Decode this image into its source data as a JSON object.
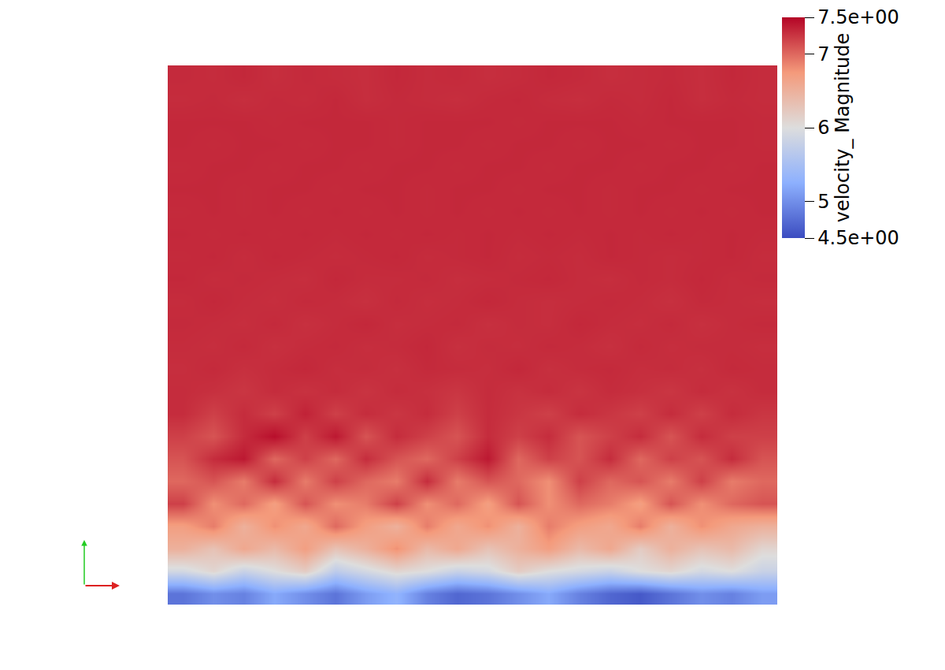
{
  "chart_data": {
    "type": "heatmap",
    "tick_labels": false,
    "grid": false,
    "z": [
      [
        4.8,
        5.0,
        4.9,
        5.2,
        5.0,
        4.8,
        5.1,
        5.3,
        4.9,
        4.7,
        4.8,
        5.0,
        5.2,
        4.9,
        4.7,
        4.6,
        4.8,
        5.0,
        4.9,
        5.1
      ],
      [
        5.9,
        6.1,
        5.8,
        6.0,
        6.2,
        5.7,
        5.9,
        6.1,
        6.0,
        5.8,
        5.9,
        6.2,
        6.0,
        5.9,
        5.8,
        6.0,
        6.1,
        5.9,
        6.0,
        5.8
      ],
      [
        6.5,
        6.3,
        6.6,
        6.4,
        6.7,
        6.3,
        6.5,
        6.8,
        6.4,
        6.6,
        6.3,
        6.5,
        6.7,
        6.4,
        6.6,
        6.2,
        6.5,
        6.3,
        6.4,
        6.1
      ],
      [
        6.7,
        6.9,
        6.5,
        6.8,
        6.6,
        7.0,
        6.7,
        6.5,
        6.9,
        6.6,
        6.8,
        6.5,
        6.9,
        6.7,
        6.6,
        6.9,
        6.5,
        6.8,
        6.6,
        6.5
      ],
      [
        7.2,
        6.8,
        7.0,
        6.7,
        7.1,
        6.8,
        6.9,
        7.2,
        6.8,
        7.0,
        6.7,
        7.1,
        6.8,
        7.0,
        6.9,
        6.7,
        7.1,
        6.8,
        7.0,
        7.1
      ],
      [
        7.0,
        7.1,
        6.9,
        7.3,
        6.9,
        7.2,
        7.0,
        6.9,
        7.3,
        6.9,
        7.1,
        7.0,
        6.8,
        7.2,
        7.0,
        7.1,
        6.9,
        7.2,
        6.9,
        7.0
      ],
      [
        7.1,
        7.3,
        7.4,
        7.0,
        7.2,
        7.0,
        7.3,
        7.1,
        7.0,
        7.2,
        7.4,
        7.0,
        7.2,
        7.1,
        7.3,
        7.0,
        7.2,
        7.1,
        7.3,
        7.1
      ],
      [
        7.2,
        7.1,
        7.3,
        7.45,
        7.2,
        7.4,
        7.1,
        7.3,
        7.2,
        7.1,
        7.3,
        7.2,
        7.3,
        7.1,
        7.2,
        7.3,
        7.1,
        7.3,
        7.2,
        7.2
      ],
      [
        7.3,
        7.2,
        7.3,
        7.2,
        7.35,
        7.2,
        7.3,
        7.25,
        7.3,
        7.2,
        7.3,
        7.25,
        7.2,
        7.3,
        7.25,
        7.2,
        7.3,
        7.2,
        7.3,
        7.25
      ],
      [
        7.3,
        7.28,
        7.25,
        7.3,
        7.27,
        7.3,
        7.26,
        7.3,
        7.28,
        7.25,
        7.3,
        7.27,
        7.3,
        7.26,
        7.3,
        7.28,
        7.25,
        7.3,
        7.27,
        7.3
      ],
      [
        7.29,
        7.31,
        7.28,
        7.3,
        7.32,
        7.29,
        7.3,
        7.28,
        7.31,
        7.3,
        7.29,
        7.32,
        7.28,
        7.3,
        7.31,
        7.29,
        7.3,
        7.28,
        7.31,
        7.3
      ],
      [
        7.3,
        7.29,
        7.31,
        7.28,
        7.3,
        7.31,
        7.29,
        7.3,
        7.32,
        7.28,
        7.3,
        7.29,
        7.31,
        7.3,
        7.28,
        7.31,
        7.29,
        7.3,
        7.3,
        7.29
      ],
      [
        7.31,
        7.3,
        7.29,
        7.31,
        7.28,
        7.3,
        7.32,
        7.29,
        7.3,
        7.31,
        7.28,
        7.3,
        7.29,
        7.32,
        7.3,
        7.29,
        7.31,
        7.28,
        7.3,
        7.31
      ],
      [
        7.3,
        7.32,
        7.3,
        7.29,
        7.31,
        7.3,
        7.28,
        7.31,
        7.29,
        7.3,
        7.32,
        7.3,
        7.29,
        7.3,
        7.31,
        7.3,
        7.28,
        7.31,
        7.3,
        7.29
      ],
      [
        7.32,
        7.3,
        7.31,
        7.3,
        7.29,
        7.32,
        7.3,
        7.3,
        7.31,
        7.29,
        7.3,
        7.31,
        7.32,
        7.3,
        7.29,
        7.31,
        7.3,
        7.32,
        7.3,
        7.31
      ],
      [
        7.31,
        7.32,
        7.3,
        7.32,
        7.31,
        7.3,
        7.31,
        7.32,
        7.3,
        7.31,
        7.32,
        7.3,
        7.31,
        7.3,
        7.32,
        7.31,
        7.3,
        7.31,
        7.32,
        7.3
      ],
      [
        7.32,
        7.31,
        7.32,
        7.31,
        7.32,
        7.31,
        7.32,
        7.31,
        7.32,
        7.31,
        7.32,
        7.31,
        7.32,
        7.31,
        7.32,
        7.31,
        7.32,
        7.31,
        7.32,
        7.31
      ],
      [
        7.31,
        7.32,
        7.31,
        7.32,
        7.31,
        7.32,
        7.31,
        7.32,
        7.31,
        7.32,
        7.31,
        7.32,
        7.31,
        7.32,
        7.31,
        7.32,
        7.31,
        7.32,
        7.31,
        7.32
      ],
      [
        7.32,
        7.32,
        7.31,
        7.32,
        7.32,
        7.31,
        7.32,
        7.32,
        7.31,
        7.32,
        7.32,
        7.31,
        7.32,
        7.32,
        7.31,
        7.32,
        7.32,
        7.31,
        7.32,
        7.32
      ],
      [
        7.31,
        7.32,
        7.32,
        7.31,
        7.32,
        7.32,
        7.31,
        7.32,
        7.32,
        7.31,
        7.32,
        7.32,
        7.31,
        7.32,
        7.32,
        7.31,
        7.32,
        7.32,
        7.31,
        7.32
      ],
      [
        7.32,
        7.31,
        7.32,
        7.32,
        7.31,
        7.32,
        7.32,
        7.31,
        7.32,
        7.32,
        7.31,
        7.32,
        7.32,
        7.31,
        7.32,
        7.32,
        7.31,
        7.32,
        7.32,
        7.31
      ],
      [
        7.32,
        7.32,
        7.32,
        7.31,
        7.32,
        7.32,
        7.32,
        7.31,
        7.32,
        7.32,
        7.32,
        7.31,
        7.32,
        7.32,
        7.32,
        7.31,
        7.32,
        7.32,
        7.32,
        7.31
      ],
      [
        7.3,
        7.31,
        7.29,
        7.31,
        7.3,
        7.32,
        7.29,
        7.31,
        7.3,
        7.29,
        7.31,
        7.32,
        7.3,
        7.29,
        7.31,
        7.3,
        7.32,
        7.29,
        7.31,
        7.3
      ],
      [
        7.31,
        7.3,
        7.32,
        7.29,
        7.31,
        7.3,
        7.29,
        7.32,
        7.3,
        7.31,
        7.29,
        7.3,
        7.32,
        7.31,
        7.29,
        7.3,
        7.31,
        7.29,
        7.32,
        7.3
      ]
    ],
    "colorbar": {
      "title": "velocity_ Magnitude",
      "range": [
        4.5,
        7.5
      ],
      "ticks": [
        {
          "value": 4.5,
          "label": "4.5e+00"
        },
        5,
        6,
        7,
        {
          "value": 7.5,
          "label": "7.5e+00"
        }
      ]
    }
  }
}
